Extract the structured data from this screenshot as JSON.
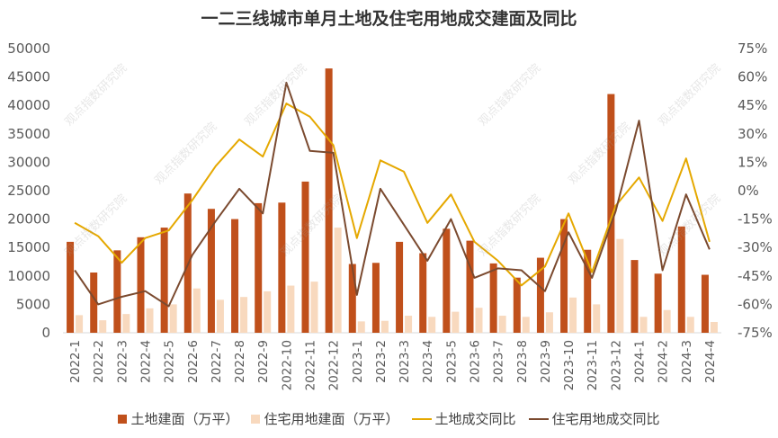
{
  "chart_data": {
    "type": "bar",
    "title": "一二三线城市单月土地及住宅用地成交建面及同比",
    "categories": [
      "2022-1",
      "2022-2",
      "2022-3",
      "2022-4",
      "2022-5",
      "2022-6",
      "2022-7",
      "2022-8",
      "2022-9",
      "2022-10",
      "2022-11",
      "2022-12",
      "2023-1",
      "2023-2",
      "2023-3",
      "2023-4",
      "2023-5",
      "2023-6",
      "2023-7",
      "2023-8",
      "2023-9",
      "2023-10",
      "2023-11",
      "2023-12",
      "2024-1",
      "2024-2",
      "2024-3",
      "2024-4"
    ],
    "y_left": {
      "ylim": [
        0,
        50000
      ],
      "ticks": [
        "0",
        "5000",
        "10000",
        "15000",
        "20000",
        "25000",
        "30000",
        "35000",
        "40000",
        "45000",
        "50000"
      ]
    },
    "y_right": {
      "ylim": [
        -75,
        75
      ],
      "ticks": [
        "-75%",
        "-60%",
        "-45%",
        "-30%",
        "-15%",
        "0%",
        "15%",
        "30%",
        "45%",
        "60%",
        "75%"
      ]
    },
    "series": [
      {
        "name": "土地建面（万平）",
        "type": "bar",
        "axis": "left",
        "color": "#C0501B",
        "values": [
          16000,
          10600,
          14500,
          16800,
          18500,
          24500,
          21800,
          20000,
          22800,
          22900,
          26600,
          46500,
          12100,
          12300,
          16000,
          14000,
          18300,
          16200,
          12200,
          9700,
          13200,
          20000,
          14600,
          42000,
          12800,
          10400,
          18700,
          10200
        ]
      },
      {
        "name": "住宅用地建面（万平）",
        "type": "bar",
        "axis": "left",
        "color": "#F8D9BE",
        "values": [
          3100,
          2200,
          3300,
          4300,
          5000,
          7800,
          5800,
          6300,
          7300,
          8300,
          9000,
          18500,
          2000,
          2100,
          3000,
          2800,
          3700,
          4400,
          3000,
          2800,
          3600,
          6200,
          5000,
          16500,
          2800,
          4000,
          2800,
          1900
        ]
      },
      {
        "name": "土地成交同比",
        "type": "line",
        "axis": "right",
        "color": "#E5A800",
        "values": [
          -17,
          -24,
          -38,
          -25,
          -21,
          -5,
          13,
          27,
          18,
          46,
          39,
          24,
          -25,
          16,
          10,
          -17,
          -2,
          -27,
          -37,
          -50,
          -40,
          -12,
          -43,
          -8,
          7,
          -16,
          17,
          -27
        ]
      },
      {
        "name": "住宅用地成交同比",
        "type": "line",
        "axis": "right",
        "color": "#7B4A2F",
        "values": [
          -42,
          -60,
          -56,
          -53,
          -61,
          -34,
          -16,
          1,
          -12,
          57,
          21,
          20,
          -55,
          1,
          -18,
          -37,
          -15,
          -46,
          -41,
          -42,
          -53,
          -22,
          -46,
          -11,
          37,
          -42,
          -2,
          -31
        ]
      }
    ]
  },
  "watermark_text": "观点指数研究院"
}
